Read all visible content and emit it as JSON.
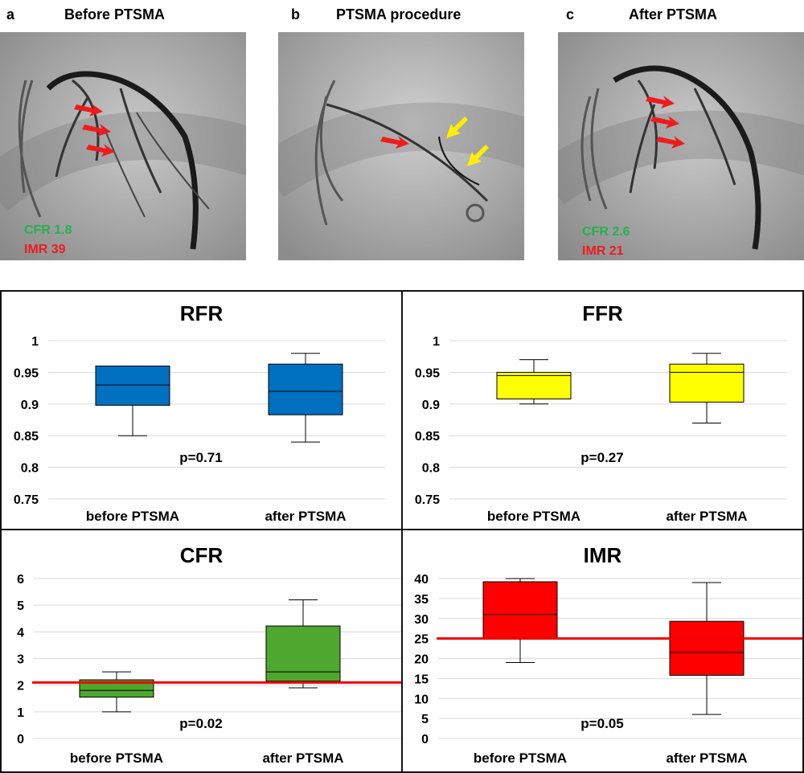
{
  "panels": [
    {
      "letter": "a",
      "title": "Before PTSMA",
      "cfr_text": "CFR 1.8",
      "imr_text": "IMR 39"
    },
    {
      "letter": "b",
      "title": "PTSMA procedure"
    },
    {
      "letter": "c",
      "title": "After PTSMA",
      "cfr_text": "CFR 2.6",
      "imr_text": "IMR 21"
    }
  ],
  "colors": {
    "green_text": "#22b24c",
    "red_text": "#ee1c1c",
    "arrow_red": "#ee1c1c",
    "arrow_yellow": "#ffee00",
    "ref_line": "#ee0000"
  },
  "chart_data": [
    {
      "type": "box",
      "title": "RFR",
      "categories": [
        "before PTSMA",
        "after PTSMA"
      ],
      "ylim": [
        0.75,
        1.0
      ],
      "yticks": [
        0.75,
        0.8,
        0.85,
        0.9,
        0.95,
        1.0
      ],
      "ytick_labels": [
        "0.75",
        "0.8",
        "0.85",
        "0.9",
        "0.95",
        "1"
      ],
      "boxes": [
        {
          "min": 0.85,
          "q1": 0.898,
          "median": 0.93,
          "q3": 0.96,
          "max": 0.96
        },
        {
          "min": 0.84,
          "q1": 0.883,
          "median": 0.92,
          "q3": 0.963,
          "max": 0.98
        }
      ],
      "color": "#0070c0",
      "p_value": "p=0.71",
      "grid": true
    },
    {
      "type": "box",
      "title": "FFR",
      "categories": [
        "before PTSMA",
        "after PTSMA"
      ],
      "ylim": [
        0.75,
        1.0
      ],
      "yticks": [
        0.75,
        0.8,
        0.85,
        0.9,
        0.95,
        1.0
      ],
      "ytick_labels": [
        "0.75",
        "0.8",
        "0.85",
        "0.9",
        "0.95",
        "1"
      ],
      "boxes": [
        {
          "min": 0.9,
          "q1": 0.908,
          "median": 0.945,
          "q3": 0.95,
          "max": 0.97
        },
        {
          "min": 0.87,
          "q1": 0.903,
          "median": 0.95,
          "q3": 0.963,
          "max": 0.98
        }
      ],
      "color": "#ffff00",
      "p_value": "p=0.27",
      "grid": true
    },
    {
      "type": "box",
      "title": "CFR",
      "categories": [
        "before PTSMA",
        "after PTSMA"
      ],
      "ylim": [
        0,
        6
      ],
      "yticks": [
        0,
        1,
        2,
        3,
        4,
        5,
        6
      ],
      "ytick_labels": [
        "0",
        "1",
        "2",
        "3",
        "4",
        "5",
        "6"
      ],
      "boxes": [
        {
          "min": 1.0,
          "q1": 1.55,
          "median": 1.8,
          "q3": 2.2,
          "max": 2.5
        },
        {
          "min": 1.9,
          "q1": 2.15,
          "median": 2.5,
          "q3": 4.22,
          "max": 5.2
        }
      ],
      "color": "#4ea72e",
      "p_value": "p=0.02",
      "reference_line": 2.1,
      "grid": true
    },
    {
      "type": "box",
      "title": "IMR",
      "categories": [
        "before PTSMA",
        "after PTSMA"
      ],
      "ylim": [
        0,
        40
      ],
      "yticks": [
        0,
        5,
        10,
        15,
        20,
        25,
        30,
        35,
        40
      ],
      "ytick_labels": [
        "0",
        "5",
        "10",
        "15",
        "20",
        "25",
        "30",
        "35",
        "40"
      ],
      "boxes": [
        {
          "min": 19,
          "q1": 25,
          "median": 31,
          "q3": 39.2,
          "max": 40
        },
        {
          "min": 6,
          "q1": 15.8,
          "median": 21.5,
          "q3": 29.3,
          "max": 39
        }
      ],
      "color": "#ff0000",
      "p_value": "p=0.05",
      "reference_line": 25,
      "grid": true
    }
  ]
}
